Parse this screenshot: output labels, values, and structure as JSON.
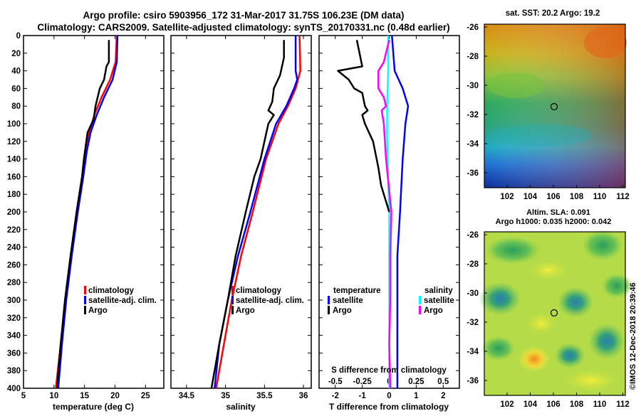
{
  "header": {
    "line1": "Argo profile: csiro 5903956_172 31-Mar-2017 31.75S 106.23E (DM data)",
    "line2": "Climatology: CARS2009. Satellite-adjusted climatology: synTS_20170331.nc (0.48d earlier)"
  },
  "colors": {
    "climatology": "#ff0000",
    "satellite": "#0000ff",
    "argo": "#000000",
    "sat_temp_diff": "#0000ff",
    "sat_sal_diff": "#00ffff",
    "argo_sal_diff": "#ff00ff"
  },
  "chart_data": [
    {
      "id": "temperature",
      "type": "line",
      "xlabel": "temperature (deg C)",
      "ylabel": "",
      "xlim": [
        5,
        28
      ],
      "ylim": [
        400,
        0
      ],
      "xticks": [
        "5",
        "10",
        "15",
        "20",
        "25"
      ],
      "yticks": [
        "0",
        "20",
        "40",
        "60",
        "80",
        "100",
        "120",
        "140",
        "160",
        "180",
        "200",
        "220",
        "240",
        "260",
        "280",
        "300",
        "320",
        "340",
        "360",
        "380",
        "400"
      ],
      "legend": [
        "climatology",
        "satellite-adj. clim.",
        "Argo"
      ],
      "series": [
        {
          "name": "climatology",
          "depth": [
            0,
            30,
            50,
            70,
            90,
            110,
            130,
            160,
            200,
            250,
            300,
            350,
            400
          ],
          "values": [
            20.3,
            20.1,
            19.2,
            17.8,
            16.6,
            15.8,
            15.3,
            14.8,
            13.9,
            12.8,
            11.9,
            11.1,
            10.3
          ]
        },
        {
          "name": "satellite-adj. clim.",
          "depth": [
            0,
            30,
            50,
            70,
            90,
            110,
            130,
            160,
            200,
            250,
            300,
            350,
            400
          ],
          "values": [
            20.4,
            20.3,
            19.6,
            18.2,
            17.0,
            16.0,
            15.4,
            14.8,
            13.9,
            12.9,
            12.0,
            11.3,
            10.7
          ]
        },
        {
          "name": "Argo",
          "depth": [
            5,
            30,
            35,
            50,
            60,
            80,
            95,
            110,
            120,
            130,
            140,
            160,
            200,
            250,
            300,
            350,
            400
          ],
          "values": [
            19.0,
            19.0,
            18.6,
            18.2,
            17.5,
            16.8,
            16.5,
            15.5,
            15.3,
            15.1,
            14.9,
            14.6,
            13.7,
            12.7,
            11.8,
            11.1,
            10.5
          ]
        }
      ]
    },
    {
      "id": "salinity",
      "type": "line",
      "xlabel": "salinity",
      "ylabel": "",
      "xlim": [
        34.3,
        36.1
      ],
      "ylim": [
        400,
        0
      ],
      "xticks": [
        "34.5",
        "35",
        "35.5",
        "36"
      ],
      "legend": [
        "climatology",
        "satellite-adj. clim.",
        "Argo"
      ],
      "series": [
        {
          "name": "climatology",
          "depth": [
            0,
            40,
            60,
            80,
            100,
            140,
            200,
            250,
            300,
            350,
            400
          ],
          "values": [
            35.95,
            35.96,
            35.9,
            35.8,
            35.68,
            35.52,
            35.35,
            35.2,
            35.08,
            34.98,
            34.88
          ]
        },
        {
          "name": "satellite-adj. clim.",
          "depth": [
            0,
            40,
            50,
            60,
            80,
            100,
            140,
            200,
            250,
            300,
            350,
            400
          ],
          "values": [
            35.9,
            35.9,
            35.92,
            35.88,
            35.78,
            35.65,
            35.5,
            35.32,
            35.16,
            35.03,
            34.92,
            34.86
          ]
        },
        {
          "name": "Argo",
          "depth": [
            5,
            25,
            45,
            60,
            75,
            85,
            90,
            100,
            120,
            140,
            160,
            200,
            250,
            300,
            350,
            400
          ],
          "values": [
            35.75,
            35.75,
            35.7,
            35.62,
            35.6,
            35.55,
            35.62,
            35.55,
            35.5,
            35.45,
            35.37,
            35.26,
            35.13,
            35.03,
            34.92,
            34.82
          ]
        }
      ]
    },
    {
      "id": "difference",
      "type": "line",
      "xlabel": "T difference from climatology",
      "ylabel": "",
      "xlim": [
        -2.6,
        2.6
      ],
      "ylim": [
        400,
        0
      ],
      "xticks": [
        "-2",
        "-1",
        "0",
        "1",
        "2"
      ],
      "top_xlabel": "S difference from climatology",
      "top_xticks": [
        "-0.5",
        "-0.25",
        "0",
        "0.25",
        "0.5"
      ],
      "legend_temperature_title": "temperature",
      "legend_salinity_title": "salinity",
      "legend_temperature": [
        "satellite",
        "Argo"
      ],
      "legend_salinity": [
        "satellite",
        "Argo"
      ],
      "series": [
        {
          "name": "T satellite",
          "depth": [
            0,
            40,
            60,
            80,
            100,
            140,
            200,
            250,
            300,
            350,
            400
          ],
          "values": [
            0.1,
            0.2,
            0.5,
            0.7,
            0.6,
            0.5,
            0.4,
            0.3,
            0.3,
            0.3,
            0.3
          ]
        },
        {
          "name": "S satellite",
          "depth": [
            0,
            40,
            80,
            120,
            160,
            200,
            300,
            400
          ],
          "values": [
            -0.01,
            -0.01,
            -0.02,
            -0.02,
            -0.01,
            0.0,
            0.0,
            0.0
          ]
        },
        {
          "name": "T Argo",
          "depth": [
            5,
            20,
            35,
            40,
            50,
            60,
            65,
            80,
            85,
            90,
            100,
            120,
            150,
            170,
            190,
            200
          ],
          "values": [
            -1.2,
            -1.1,
            -1.0,
            -1.9,
            -1.5,
            -1.3,
            -1.0,
            -0.9,
            -0.8,
            -1.0,
            -0.9,
            -0.6,
            -0.4,
            -0.3,
            -0.1,
            0.0
          ]
        },
        {
          "name": "S Argo",
          "depth": [
            5,
            30,
            40,
            60,
            70,
            80,
            85,
            100,
            140,
            200,
            250,
            300,
            350,
            400
          ],
          "values": [
            0.0,
            -0.05,
            -0.1,
            -0.1,
            -0.05,
            -0.03,
            -0.07,
            -0.05,
            -0.03,
            0.02,
            0.01,
            0.01,
            0.0,
            0.01
          ]
        }
      ]
    }
  ],
  "map_sst": {
    "title": "sat. SST: 20.2 Argo: 19.2",
    "lat_ticks": [
      "-26",
      "-28",
      "-30",
      "-32",
      "-34",
      "-36"
    ],
    "lon_ticks": [
      "102",
      "104",
      "106",
      "108",
      "110",
      "112"
    ]
  },
  "map_sla": {
    "title1": "Altim. SLA: 0.091",
    "title2": "Argo h1000: 0.035 h2000: 0.042",
    "lat_ticks": [
      "-26",
      "-28",
      "-30",
      "-32",
      "-34",
      "-36"
    ],
    "lon_ticks": [
      "102",
      "104",
      "106",
      "108",
      "110",
      "112"
    ]
  },
  "credit": "©IMOS 12-Dec-2018 20:39:46"
}
